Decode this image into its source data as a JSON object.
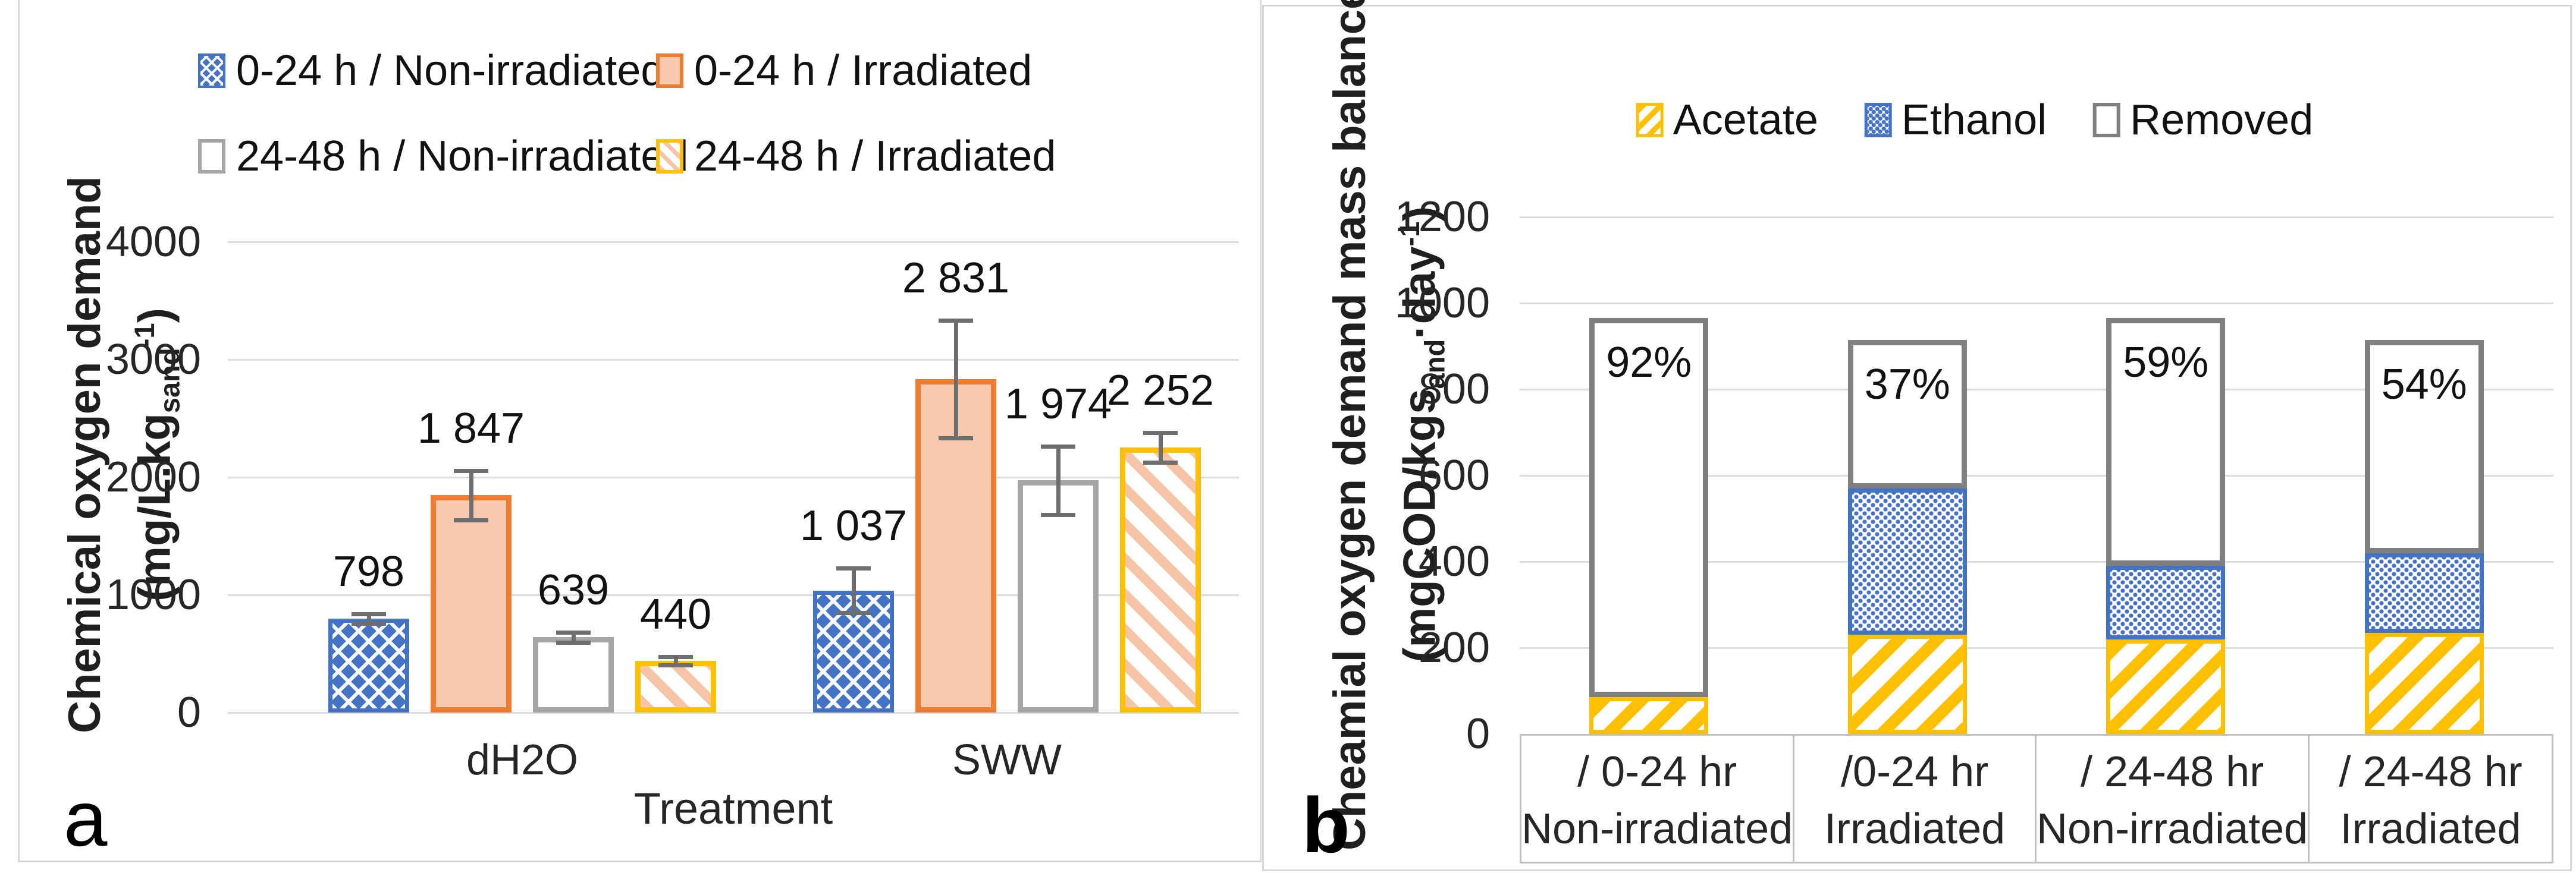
{
  "figure": {
    "panel_letters": [
      "a",
      "b"
    ]
  },
  "colors": {
    "blue": "#4472C4",
    "orange_border": "#ED7D31",
    "orange_fill": "#F6C9AC",
    "gray_border": "#A6A6A6",
    "gold": "#FFC000",
    "removed_gray": "#7F7F7F",
    "gridline": "#DCDCDC",
    "error_bar": "#6E6E6E",
    "light_hatch": "#F6C5A5"
  },
  "chart_data": [
    {
      "type": "bar",
      "panel_letter": "a",
      "title": "",
      "xlabel": "Treatment",
      "ylabel": "Chemical oxygen demand",
      "ylabel_units_parts": [
        {
          "t": "(mg/L.kg"
        },
        {
          "t": "sand",
          "sub": true
        },
        {
          "t": "-1",
          "sup": true
        },
        {
          "t": ")"
        }
      ],
      "categories": [
        "dH2O",
        "SWW"
      ],
      "ylim": [
        0,
        4000
      ],
      "yticks": [
        0,
        1000,
        2000,
        3000,
        4000
      ],
      "grid": true,
      "legend_position": "top",
      "series": [
        {
          "name": "0-24 h / Non-irradiated",
          "style": "bluecross",
          "values": [
            798,
            1037
          ],
          "errors": [
            40,
            190
          ],
          "value_labels": [
            "798",
            "1 037"
          ]
        },
        {
          "name": "0-24 h / Irradiated",
          "style": "orange",
          "values": [
            1847,
            2831
          ],
          "errors": [
            210,
            500
          ],
          "value_labels": [
            "1 847",
            "2 831"
          ]
        },
        {
          "name": "24-48 h / Non-irradiated",
          "style": "grayopen",
          "values": [
            639,
            1974
          ],
          "errors": [
            45,
            290
          ],
          "value_labels": [
            "639",
            "1 974"
          ]
        },
        {
          "name": "24-48 h / Irradiated",
          "style": "goldlight",
          "values": [
            440,
            2252
          ],
          "errors": [
            35,
            125
          ],
          "value_labels": [
            "440",
            "2 252"
          ]
        }
      ]
    },
    {
      "type": "stacked-bar",
      "panel_letter": "b",
      "title": "",
      "ylabel": "Cheamial oxygen demand mass balance",
      "ylabel_units_parts": [
        {
          "t": "(mgCOD/kgs"
        },
        {
          "t": "and",
          "sub": true
        },
        {
          "t": "·day"
        },
        {
          "t": "-1",
          "sup": true
        },
        {
          "t": ")"
        }
      ],
      "categories": [
        {
          "line1": "/ 0-24 hr",
          "line2": "Non-irradiated"
        },
        {
          "line1": "/0-24 hr",
          "line2": "Irradiated"
        },
        {
          "line1": "/ 24-48 hr",
          "line2": "Non-irradiated"
        },
        {
          "line1": "/ 24-48 hr",
          "line2": "Irradiated"
        }
      ],
      "ylim": [
        0,
        1200
      ],
      "yticks": [
        0,
        200,
        400,
        600,
        800,
        1000,
        1200
      ],
      "grid": true,
      "legend_position": "top",
      "series": [
        {
          "name": "Acetate",
          "style": "golddiag",
          "values": [
            85,
            230,
            220,
            235
          ]
        },
        {
          "name": "Ethanol",
          "style": "bluedot",
          "values": [
            0,
            340,
            170,
            185
          ]
        },
        {
          "name": "Removed",
          "style": "removed",
          "values": [
            880,
            345,
            575,
            495
          ]
        }
      ],
      "bar_totals": [
        965,
        915,
        965,
        915
      ],
      "bar_labels": [
        "92%",
        "37%",
        "59%",
        "54%"
      ]
    }
  ]
}
